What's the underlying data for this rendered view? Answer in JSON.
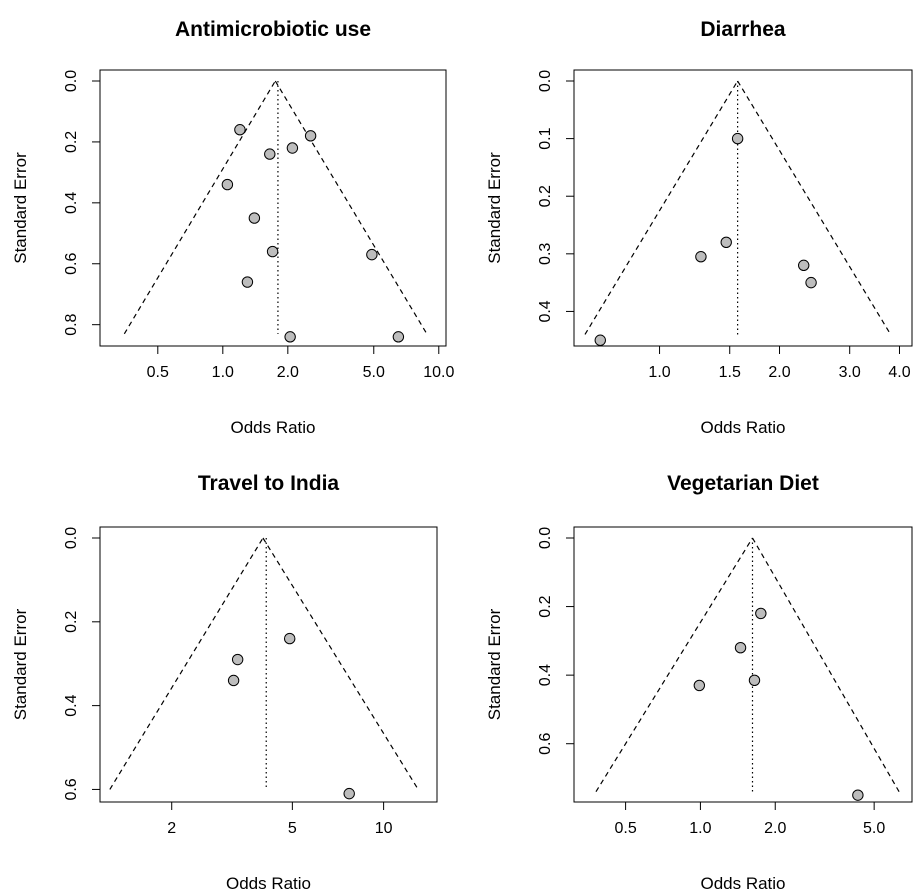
{
  "colors": {
    "point_fill": "#bdbdbd",
    "point_stroke": "#000000",
    "line": "#000000",
    "background": "#ffffff"
  },
  "chart_data": [
    {
      "type": "scatter",
      "title": "Antimicrobiotic use",
      "xlabel": "Odds Ratio",
      "ylabel": "Standard Error",
      "x_scale": "log",
      "x_ticks": [
        "0.5",
        "1.0",
        "2.0",
        "5.0",
        "10.0"
      ],
      "y_ticks": [
        "0.0",
        "0.2",
        "0.4",
        "0.6",
        "0.8"
      ],
      "xlim": [
        0.27,
        10.8
      ],
      "ylim": [
        0.0,
        0.87
      ],
      "y_inverted": true,
      "pooled_or": 1.8,
      "funnel": {
        "apex_x": 1.75,
        "base_se": 0.83,
        "left_x": 0.35,
        "right_x": 8.8
      },
      "points": [
        {
          "x": 1.2,
          "y": 0.16
        },
        {
          "x": 2.55,
          "y": 0.18
        },
        {
          "x": 2.1,
          "y": 0.22
        },
        {
          "x": 1.65,
          "y": 0.24
        },
        {
          "x": 1.05,
          "y": 0.34
        },
        {
          "x": 1.4,
          "y": 0.45
        },
        {
          "x": 1.7,
          "y": 0.56
        },
        {
          "x": 4.9,
          "y": 0.57
        },
        {
          "x": 1.3,
          "y": 0.66
        },
        {
          "x": 2.05,
          "y": 0.84
        },
        {
          "x": 6.5,
          "y": 0.84
        }
      ]
    },
    {
      "type": "scatter",
      "title": "Diarrhea",
      "xlabel": "Odds Ratio",
      "ylabel": "Standard Error",
      "x_scale": "log",
      "x_ticks": [
        "1.0",
        "1.5",
        "2.0",
        "3.0",
        "4.0"
      ],
      "y_ticks": [
        "0.0",
        "0.1",
        "0.2",
        "0.3",
        "0.4"
      ],
      "xlim": [
        0.61,
        4.3
      ],
      "ylim": [
        0.0,
        0.46
      ],
      "y_inverted": true,
      "pooled_or": 1.57,
      "funnel": {
        "apex_x": 1.57,
        "base_se": 0.44,
        "left_x": 0.65,
        "right_x": 3.8
      },
      "points": [
        {
          "x": 1.57,
          "y": 0.1
        },
        {
          "x": 1.47,
          "y": 0.28
        },
        {
          "x": 1.27,
          "y": 0.305
        },
        {
          "x": 2.3,
          "y": 0.32
        },
        {
          "x": 2.4,
          "y": 0.35
        },
        {
          "x": 0.71,
          "y": 0.45
        }
      ]
    },
    {
      "type": "scatter",
      "title": "Travel to India",
      "xlabel": "Odds Ratio",
      "ylabel": "Standard Error",
      "x_scale": "log",
      "x_ticks": [
        "2",
        "5",
        "10"
      ],
      "y_ticks": [
        "0.0",
        "0.2",
        "0.4",
        "0.6"
      ],
      "xlim": [
        1.16,
        15.0
      ],
      "ylim": [
        0.0,
        0.63
      ],
      "y_inverted": true,
      "pooled_or": 4.1,
      "funnel": {
        "apex_x": 4.0,
        "base_se": 0.6,
        "left_x": 1.25,
        "right_x": 13.0
      },
      "points": [
        {
          "x": 4.9,
          "y": 0.24
        },
        {
          "x": 3.3,
          "y": 0.29
        },
        {
          "x": 3.2,
          "y": 0.34
        },
        {
          "x": 7.7,
          "y": 0.61
        }
      ]
    },
    {
      "type": "scatter",
      "title": "Vegetarian Diet",
      "xlabel": "Odds Ratio",
      "ylabel": "Standard Error",
      "x_scale": "log",
      "x_ticks": [
        "0.5",
        "1.0",
        "2.0",
        "5.0"
      ],
      "y_ticks": [
        "0.0",
        "0.2",
        "0.4",
        "0.6"
      ],
      "xlim": [
        0.31,
        7.1
      ],
      "ylim": [
        0.0,
        0.77
      ],
      "y_inverted": true,
      "pooled_or": 1.62,
      "funnel": {
        "apex_x": 1.62,
        "base_se": 0.74,
        "left_x": 0.38,
        "right_x": 6.3
      },
      "points": [
        {
          "x": 1.75,
          "y": 0.22
        },
        {
          "x": 1.45,
          "y": 0.32
        },
        {
          "x": 1.65,
          "y": 0.415
        },
        {
          "x": 0.99,
          "y": 0.43
        },
        {
          "x": 4.3,
          "y": 0.75
        }
      ]
    }
  ]
}
